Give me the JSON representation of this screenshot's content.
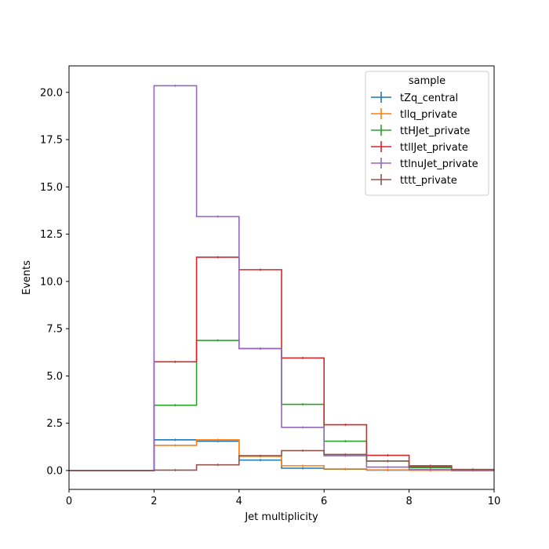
{
  "chart_data": {
    "type": "histogram-step",
    "xlabel": "Jet multiplicity",
    "ylabel": "Events",
    "xlim": [
      0,
      10
    ],
    "ylim": [
      -1.0,
      21.4
    ],
    "x_ticks": [
      "0",
      "2",
      "4",
      "6",
      "8",
      "10"
    ],
    "y_ticks": [
      "0.0",
      "2.5",
      "5.0",
      "7.5",
      "10.0",
      "12.5",
      "15.0",
      "17.5",
      "20.0"
    ],
    "grid": false,
    "bin_edges": [
      0,
      1,
      2,
      3,
      4,
      5,
      6,
      7,
      8,
      9,
      10
    ],
    "legend": {
      "title": "sample",
      "position": "upper right"
    },
    "series": [
      {
        "name": "tZq_central",
        "color": "#1f77b4",
        "errorbars": true,
        "values": [
          0,
          0,
          1.62,
          1.55,
          0.55,
          0.12,
          0.07,
          0.02,
          0.01,
          0.0
        ]
      },
      {
        "name": "tllq_private",
        "color": "#ff7f0e",
        "errorbars": true,
        "values": [
          0,
          0,
          1.33,
          1.62,
          0.75,
          0.25,
          0.08,
          0.03,
          0.01,
          0.0
        ]
      },
      {
        "name": "ttHJet_private",
        "color": "#2ca02c",
        "errorbars": true,
        "values": [
          0,
          0,
          3.45,
          6.88,
          6.45,
          3.5,
          1.55,
          0.5,
          0.15,
          0.03
        ]
      },
      {
        "name": "ttllJet_private",
        "color": "#d62728",
        "errorbars": true,
        "values": [
          0,
          0,
          5.75,
          11.28,
          10.62,
          5.95,
          2.42,
          0.8,
          0.25,
          0.05
        ]
      },
      {
        "name": "ttlnuJet_private",
        "color": "#9467bd",
        "errorbars": true,
        "values": [
          0,
          0,
          20.35,
          13.43,
          6.45,
          2.28,
          0.78,
          0.18,
          0.05,
          0.01
        ]
      },
      {
        "name": "tttt_private",
        "color": "#8c564b",
        "errorbars": true,
        "values": [
          0,
          0,
          0.02,
          0.3,
          0.78,
          1.05,
          0.85,
          0.5,
          0.2,
          0.05
        ]
      }
    ]
  }
}
